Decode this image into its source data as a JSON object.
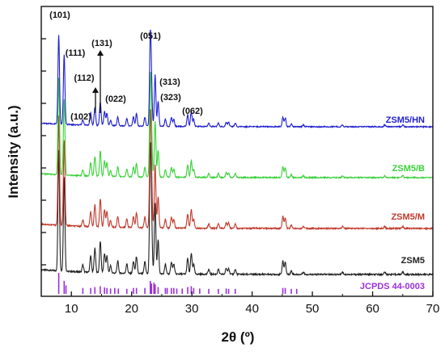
{
  "chart_data": {
    "type": "line",
    "xlabel": "2θ (º)",
    "ylabel": "Intensity (a.u.)",
    "xlim": [
      5,
      70
    ],
    "xticks": [
      10,
      20,
      30,
      40,
      50,
      60,
      70
    ],
    "grid": false,
    "series": [
      {
        "name": "ZSM5/HN",
        "color": "#1f1fd0",
        "offset": 3
      },
      {
        "name": "ZSM5/B",
        "color": "#3ad13a",
        "offset": 2
      },
      {
        "name": "ZSM5/M",
        "color": "#c0392b",
        "offset": 1
      },
      {
        "name": "ZSM5",
        "color": "#222222",
        "offset": 0
      }
    ],
    "reference": {
      "name": "JCPDS 44-0003",
      "color": "#9b30d9",
      "positions": [
        7.9,
        8.8,
        9.1,
        11.9,
        13.2,
        13.9,
        14.8,
        15.5,
        15.9,
        16.5,
        17.2,
        17.8,
        19.2,
        20.3,
        20.8,
        22.2,
        23.1,
        23.3,
        23.7,
        23.9,
        24.4,
        25.6,
        25.9,
        26.6,
        27.0,
        27.5,
        28.4,
        29.3,
        29.9,
        30.3,
        31.3,
        32.8,
        34.4,
        35.7,
        36.1,
        37.2,
        45.1,
        45.5,
        46.5,
        47.4
      ],
      "heights": [
        1.0,
        0.55,
        0.3,
        0.15,
        0.15,
        0.2,
        0.25,
        0.18,
        0.15,
        0.12,
        0.15,
        0.12,
        0.1,
        0.15,
        0.15,
        0.15,
        0.55,
        0.4,
        0.45,
        0.35,
        0.2,
        0.15,
        0.15,
        0.15,
        0.15,
        0.12,
        0.12,
        0.2,
        0.25,
        0.15,
        0.12,
        0.1,
        0.1,
        0.12,
        0.1,
        0.1,
        0.15,
        0.15,
        0.1,
        0.1
      ]
    },
    "peaks": [
      {
        "pos": 7.9,
        "h": 1.0
      },
      {
        "pos": 8.8,
        "h": 0.78
      },
      {
        "pos": 11.9,
        "h": 0.06
      },
      {
        "pos": 13.2,
        "h": 0.14
      },
      {
        "pos": 13.9,
        "h": 0.2
      },
      {
        "pos": 14.8,
        "h": 0.26
      },
      {
        "pos": 15.5,
        "h": 0.16
      },
      {
        "pos": 15.9,
        "h": 0.14
      },
      {
        "pos": 16.5,
        "h": 0.06
      },
      {
        "pos": 17.7,
        "h": 0.1
      },
      {
        "pos": 19.2,
        "h": 0.08
      },
      {
        "pos": 20.3,
        "h": 0.1
      },
      {
        "pos": 20.8,
        "h": 0.14
      },
      {
        "pos": 22.2,
        "h": 0.1
      },
      {
        "pos": 23.1,
        "h": 0.96
      },
      {
        "pos": 23.3,
        "h": 0.4
      },
      {
        "pos": 23.9,
        "h": 0.58
      },
      {
        "pos": 24.4,
        "h": 0.28
      },
      {
        "pos": 25.6,
        "h": 0.08
      },
      {
        "pos": 26.6,
        "h": 0.1
      },
      {
        "pos": 27.0,
        "h": 0.08
      },
      {
        "pos": 29.3,
        "h": 0.13
      },
      {
        "pos": 29.9,
        "h": 0.17
      },
      {
        "pos": 30.3,
        "h": 0.08
      },
      {
        "pos": 32.8,
        "h": 0.04
      },
      {
        "pos": 34.4,
        "h": 0.04
      },
      {
        "pos": 35.7,
        "h": 0.05
      },
      {
        "pos": 36.1,
        "h": 0.05
      },
      {
        "pos": 37.2,
        "h": 0.04
      },
      {
        "pos": 45.1,
        "h": 0.11
      },
      {
        "pos": 45.5,
        "h": 0.1
      },
      {
        "pos": 46.5,
        "h": 0.03
      },
      {
        "pos": 48.5,
        "h": 0.02
      },
      {
        "pos": 55.0,
        "h": 0.02
      },
      {
        "pos": 62.0,
        "h": 0.02
      },
      {
        "pos": 65.0,
        "h": 0.02
      }
    ],
    "annotations": [
      {
        "text": "(101)",
        "x": 8.0
      },
      {
        "text": "(111)",
        "x": 9.8
      },
      {
        "text": "(131)",
        "x": 15.2
      },
      {
        "text": "(112)",
        "x": 12.8
      },
      {
        "text": "(022)",
        "x": 17.2
      },
      {
        "text": "(102)",
        "x": 11.1
      },
      {
        "text": "(051)",
        "x": 23.3
      },
      {
        "text": "(313)",
        "x": 26.0
      },
      {
        "text": "(323)",
        "x": 26.7
      },
      {
        "text": "(062)",
        "x": 30.1
      }
    ]
  }
}
